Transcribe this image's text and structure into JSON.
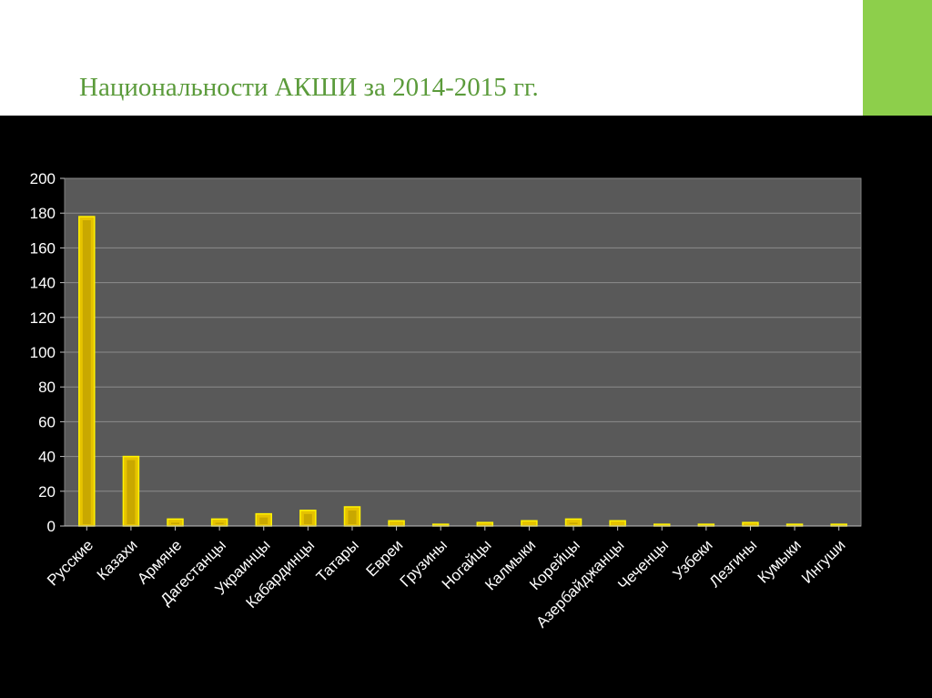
{
  "slide": {
    "title": "Национальности АКШИ за 2014-2015 гг.",
    "accent_color": "#8dcf4b",
    "title_color": "#5b9b3b"
  },
  "chart_data": {
    "type": "bar",
    "title": "",
    "xlabel": "",
    "ylabel": "",
    "ylim": [
      0,
      200
    ],
    "yticks": [
      0,
      20,
      40,
      60,
      80,
      100,
      120,
      140,
      160,
      180,
      200
    ],
    "grid": true,
    "legend": "none",
    "plot_background": "#595959",
    "bar_color": "#e6c300",
    "categories": [
      "Русские",
      "Казахи",
      "Армяне",
      "Дагестанцы",
      "Украинцы",
      "Кабардинцы",
      "Татары",
      "Евреи",
      "Грузины",
      "Ногайцы",
      "Калмыки",
      "Корейцы",
      "Азербайджанцы",
      "Чеченцы",
      "Узбеки",
      "Лезгины",
      "Кумыки",
      "Ингуши"
    ],
    "values": [
      178,
      40,
      4,
      4,
      7,
      9,
      11,
      3,
      1,
      2,
      3,
      4,
      3,
      1,
      1,
      2,
      1,
      1
    ]
  }
}
